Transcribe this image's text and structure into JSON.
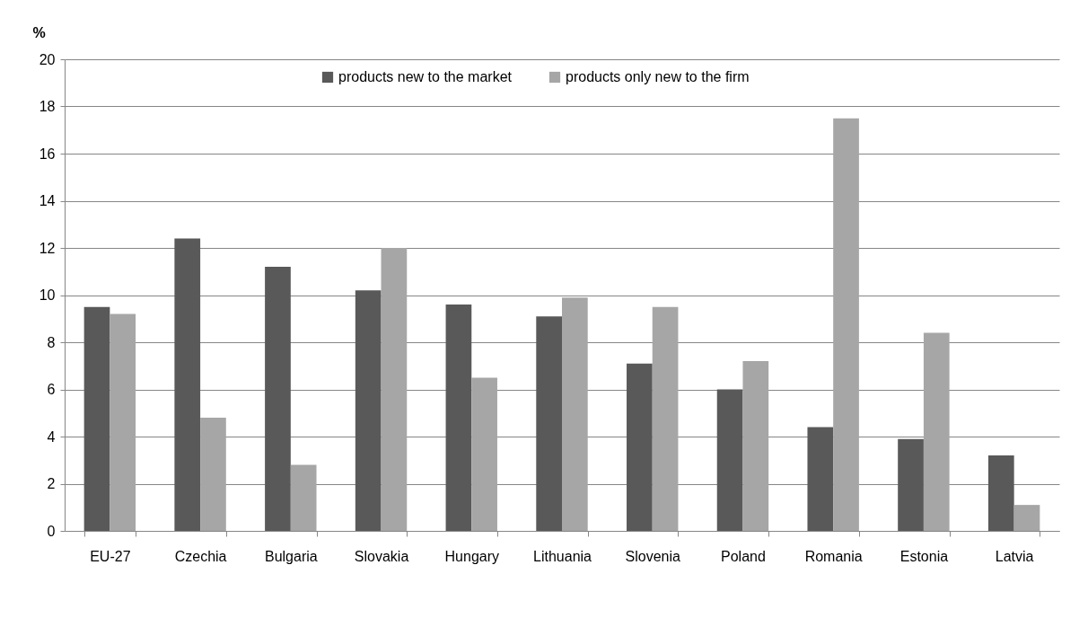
{
  "chart_data": {
    "type": "bar",
    "ylabel": "%",
    "categories": [
      "EU-27",
      "Czechia",
      "Bulgaria",
      "Slovakia",
      "Hungary",
      "Lithuania",
      "Slovenia",
      "Poland",
      "Romania",
      "Estonia",
      "Latvia"
    ],
    "series": [
      {
        "name": "products new to the market",
        "color": "#595959",
        "values": [
          9.5,
          12.4,
          11.2,
          10.2,
          9.6,
          9.1,
          7.1,
          6.0,
          4.4,
          3.9,
          3.2
        ]
      },
      {
        "name": "products only new to the firm",
        "color": "#a6a6a6",
        "values": [
          9.2,
          4.8,
          2.8,
          12.0,
          6.5,
          9.9,
          9.5,
          7.2,
          17.5,
          8.4,
          1.1
        ]
      }
    ],
    "ylim": [
      0,
      20
    ],
    "yticks": [
      0,
      2,
      4,
      6,
      8,
      10,
      12,
      14,
      16,
      18,
      20
    ],
    "grid": "y",
    "legend": "top"
  }
}
